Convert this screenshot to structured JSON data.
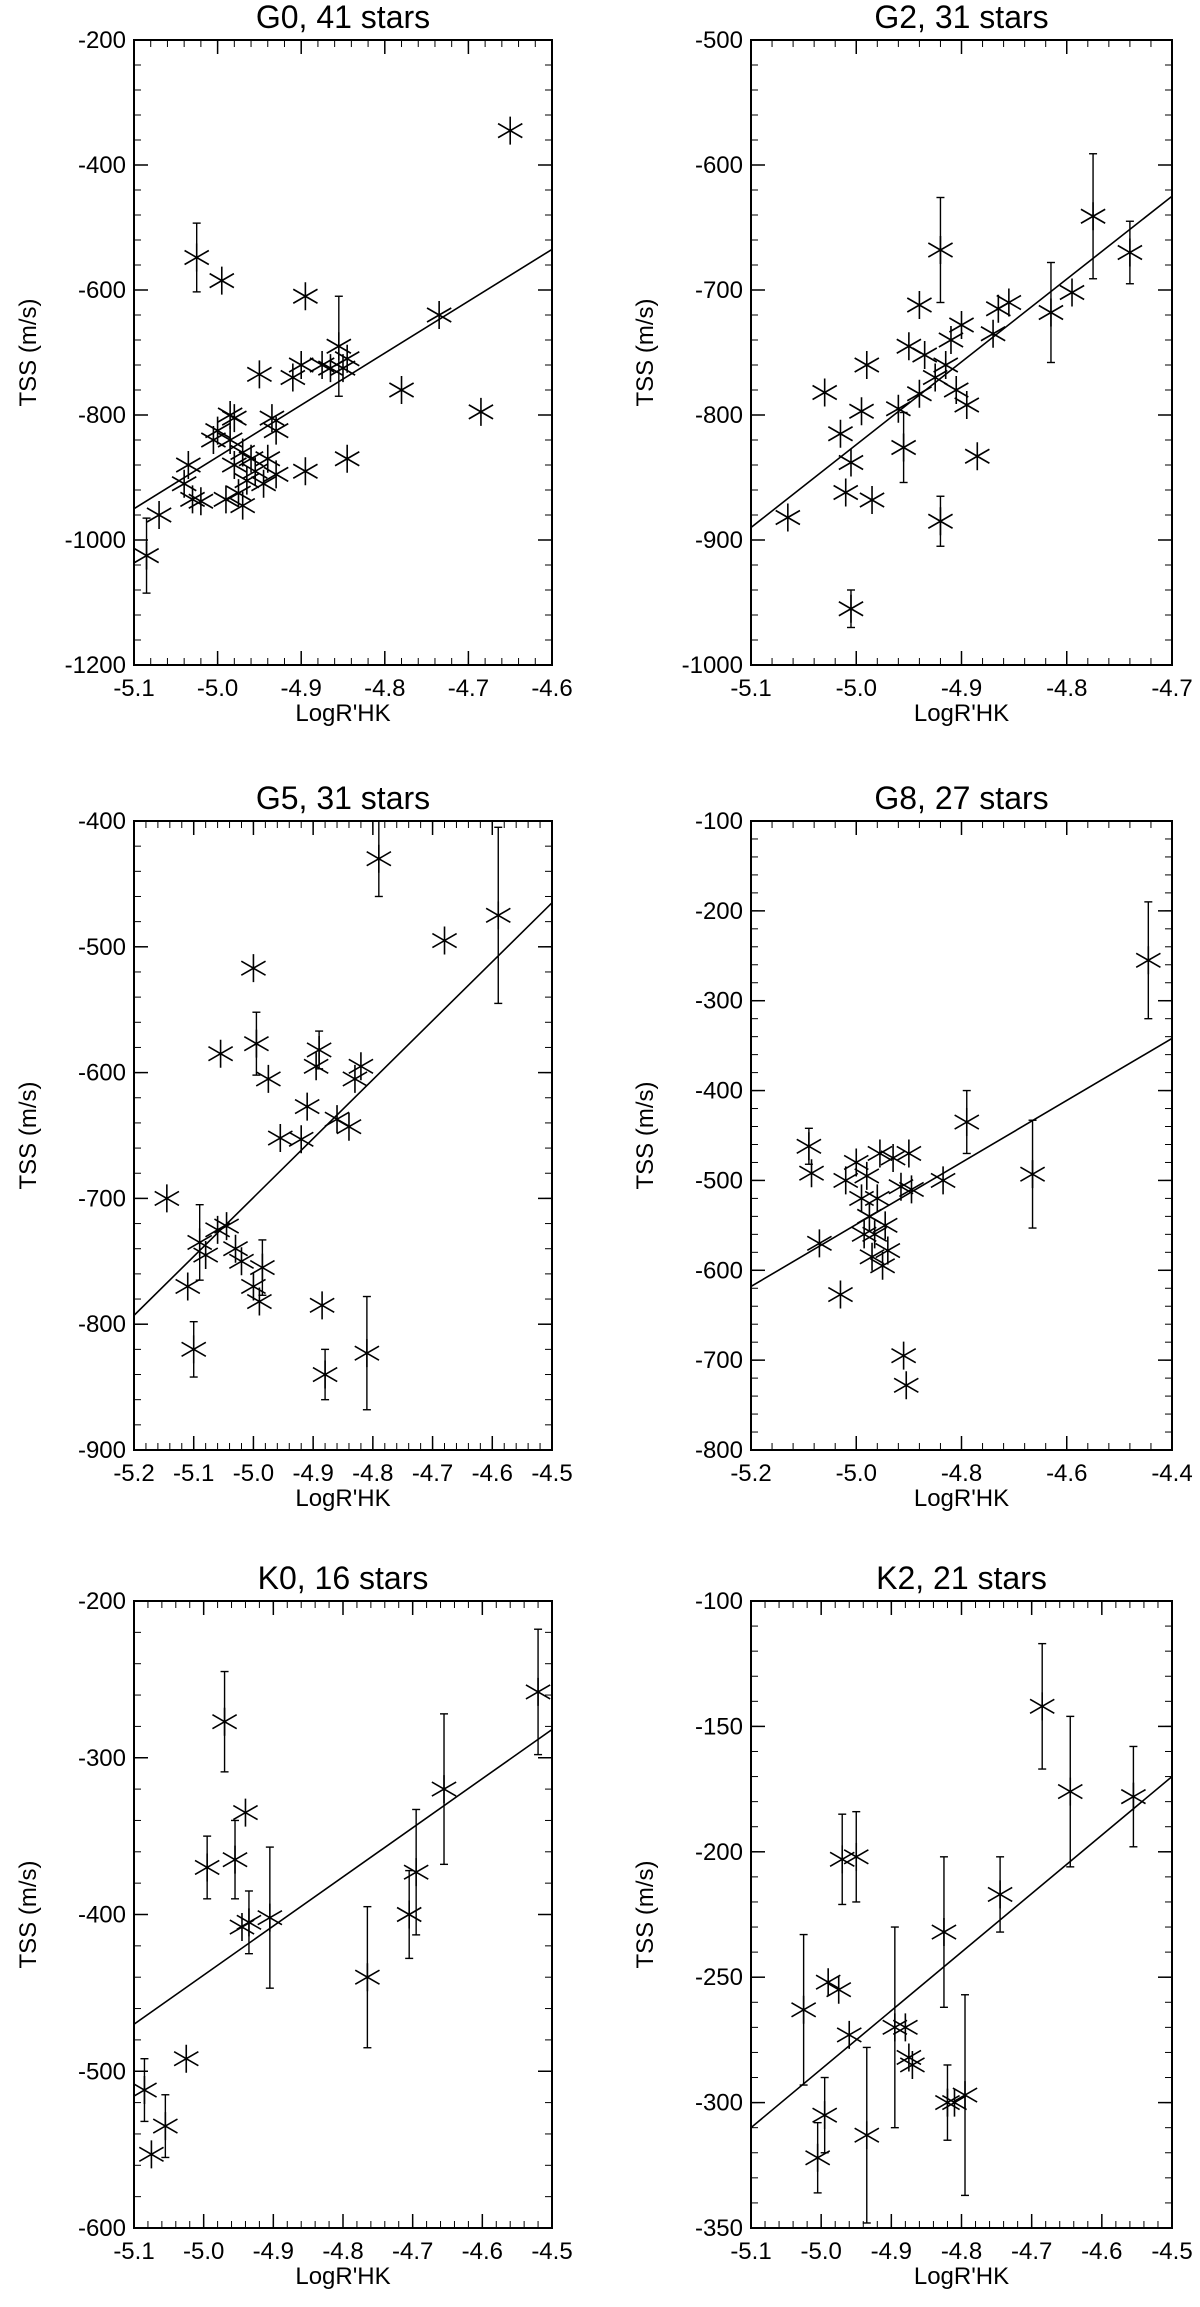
{
  "chart_data": [
    {
      "type": "scatter",
      "title": "G0, 41 stars",
      "xlabel": "LogR'HK",
      "ylabel": "TSS (m/s)",
      "xlim": [
        -5.1,
        -4.6
      ],
      "ylim": [
        -1200,
        -200
      ],
      "xticks": [
        -5.1,
        -5.0,
        -4.9,
        -4.8,
        -4.7,
        -4.6
      ],
      "xtick_labels": [
        "-5.1",
        "-5.0",
        "-4.9",
        "-4.8",
        "-4.7",
        "-4.6"
      ],
      "yticks": [
        -1200,
        -1000,
        -800,
        -600,
        -400,
        -200
      ],
      "ytick_labels": [
        "-1200",
        "-1000",
        "-800",
        "-600",
        "-400",
        "-200"
      ],
      "fit_line": {
        "x": [
          -5.1,
          -4.6
        ],
        "y": [
          -950,
          -535
        ]
      },
      "points": [
        {
          "x": -5.085,
          "y": -1025,
          "err": 60
        },
        {
          "x": -5.07,
          "y": -960,
          "err": 0
        },
        {
          "x": -5.04,
          "y": -910,
          "err": 0
        },
        {
          "x": -5.035,
          "y": -880,
          "err": 0
        },
        {
          "x": -5.03,
          "y": -935,
          "err": 0
        },
        {
          "x": -5.025,
          "y": -548,
          "err": 55
        },
        {
          "x": -5.02,
          "y": -938,
          "err": 0
        },
        {
          "x": -5.005,
          "y": -840,
          "err": 0
        },
        {
          "x": -5.0,
          "y": -825,
          "err": 0
        },
        {
          "x": -4.995,
          "y": -585,
          "err": 0
        },
        {
          "x": -4.99,
          "y": -935,
          "err": 0
        },
        {
          "x": -4.985,
          "y": -800,
          "err": 0
        },
        {
          "x": -4.985,
          "y": -840,
          "err": 0
        },
        {
          "x": -4.98,
          "y": -805,
          "err": 0
        },
        {
          "x": -4.98,
          "y": -880,
          "err": 0
        },
        {
          "x": -4.975,
          "y": -925,
          "err": 0
        },
        {
          "x": -4.97,
          "y": -945,
          "err": 0
        },
        {
          "x": -4.97,
          "y": -860,
          "err": 0
        },
        {
          "x": -4.965,
          "y": -905,
          "err": 0
        },
        {
          "x": -4.96,
          "y": -870,
          "err": 0
        },
        {
          "x": -4.955,
          "y": -890,
          "err": 0
        },
        {
          "x": -4.95,
          "y": -735,
          "err": 0
        },
        {
          "x": -4.945,
          "y": -910,
          "err": 0
        },
        {
          "x": -4.94,
          "y": -870,
          "err": 0
        },
        {
          "x": -4.935,
          "y": -805,
          "err": 0
        },
        {
          "x": -4.93,
          "y": -825,
          "err": 0
        },
        {
          "x": -4.93,
          "y": -895,
          "err": 0
        },
        {
          "x": -4.91,
          "y": -740,
          "err": 0
        },
        {
          "x": -4.9,
          "y": -720,
          "err": 0
        },
        {
          "x": -4.895,
          "y": -610,
          "err": 0
        },
        {
          "x": -4.895,
          "y": -890,
          "err": 0
        },
        {
          "x": -4.875,
          "y": -720,
          "err": 0
        },
        {
          "x": -4.865,
          "y": -725,
          "err": 0
        },
        {
          "x": -4.855,
          "y": -690,
          "err": 80
        },
        {
          "x": -4.85,
          "y": -725,
          "err": 0
        },
        {
          "x": -4.845,
          "y": -870,
          "err": 0
        },
        {
          "x": -4.845,
          "y": -710,
          "err": 0
        },
        {
          "x": -4.78,
          "y": -760,
          "err": 0
        },
        {
          "x": -4.735,
          "y": -640,
          "err": 0
        },
        {
          "x": -4.685,
          "y": -795,
          "err": 0
        },
        {
          "x": -4.65,
          "y": -345,
          "err": 0
        }
      ]
    },
    {
      "type": "scatter",
      "title": "G2, 31 stars",
      "xlabel": "LogR'HK",
      "ylabel": "TSS (m/s)",
      "xlim": [
        -5.1,
        -4.7
      ],
      "ylim": [
        -1000,
        -500
      ],
      "xticks": [
        -5.1,
        -5.0,
        -4.9,
        -4.8,
        -4.7
      ],
      "xtick_labels": [
        "-5.1",
        "-5.0",
        "-4.9",
        "-4.8",
        "-4.7"
      ],
      "yticks": [
        -1000,
        -900,
        -800,
        -700,
        -600,
        -500
      ],
      "ytick_labels": [
        "-1000",
        "-900",
        "-800",
        "-700",
        "-600",
        "-500"
      ],
      "fit_line": {
        "x": [
          -5.1,
          -4.7
        ],
        "y": [
          -890,
          -625
        ]
      },
      "points": [
        {
          "x": -5.065,
          "y": -882,
          "err": 0
        },
        {
          "x": -5.03,
          "y": -782,
          "err": 0
        },
        {
          "x": -5.015,
          "y": -815,
          "err": 0
        },
        {
          "x": -5.01,
          "y": -862,
          "err": 0
        },
        {
          "x": -5.005,
          "y": -955,
          "err": 15
        },
        {
          "x": -5.005,
          "y": -838,
          "err": 0
        },
        {
          "x": -4.995,
          "y": -797,
          "err": 0
        },
        {
          "x": -4.99,
          "y": -760,
          "err": 0
        },
        {
          "x": -4.985,
          "y": -868,
          "err": 0
        },
        {
          "x": -4.96,
          "y": -795,
          "err": 0
        },
        {
          "x": -4.955,
          "y": -826,
          "err": 28
        },
        {
          "x": -4.95,
          "y": -745,
          "err": 0
        },
        {
          "x": -4.94,
          "y": -712,
          "err": 0
        },
        {
          "x": -4.94,
          "y": -783,
          "err": 0
        },
        {
          "x": -4.935,
          "y": -752,
          "err": 0
        },
        {
          "x": -4.925,
          "y": -770,
          "err": 0
        },
        {
          "x": -4.92,
          "y": -668,
          "err": 42
        },
        {
          "x": -4.92,
          "y": -885,
          "err": 20
        },
        {
          "x": -4.915,
          "y": -760,
          "err": 0
        },
        {
          "x": -4.91,
          "y": -740,
          "err": 0
        },
        {
          "x": -4.905,
          "y": -780,
          "err": 0
        },
        {
          "x": -4.9,
          "y": -728,
          "err": 0
        },
        {
          "x": -4.895,
          "y": -792,
          "err": 0
        },
        {
          "x": -4.885,
          "y": -833,
          "err": 0
        },
        {
          "x": -4.87,
          "y": -735,
          "err": 0
        },
        {
          "x": -4.865,
          "y": -715,
          "err": 0
        },
        {
          "x": -4.855,
          "y": -710,
          "err": 0
        },
        {
          "x": -4.815,
          "y": -718,
          "err": 40
        },
        {
          "x": -4.795,
          "y": -702,
          "err": 0
        },
        {
          "x": -4.775,
          "y": -641,
          "err": 50
        },
        {
          "x": -4.74,
          "y": -670,
          "err": 25
        }
      ]
    },
    {
      "type": "scatter",
      "title": "G5, 31 stars",
      "xlabel": "LogR'HK",
      "ylabel": "TSS (m/s)",
      "xlim": [
        -5.2,
        -4.5
      ],
      "ylim": [
        -900,
        -400
      ],
      "xticks": [
        -5.2,
        -5.1,
        -5.0,
        -4.9,
        -4.8,
        -4.7,
        -4.6,
        -4.5
      ],
      "xtick_labels": [
        "-5.2",
        "-5.1",
        "-5.0",
        "-4.9",
        "-4.8",
        "-4.7",
        "-4.6",
        "-4.5"
      ],
      "yticks": [
        -900,
        -800,
        -700,
        -600,
        -500,
        -400
      ],
      "ytick_labels": [
        "-900",
        "-800",
        "-700",
        "-600",
        "-500",
        "-400"
      ],
      "fit_line": {
        "x": [
          -5.2,
          -4.5
        ],
        "y": [
          -793,
          -465
        ]
      },
      "points": [
        {
          "x": -5.145,
          "y": -700,
          "err": 0
        },
        {
          "x": -5.11,
          "y": -770,
          "err": 0
        },
        {
          "x": -5.1,
          "y": -820,
          "err": 22
        },
        {
          "x": -5.09,
          "y": -735,
          "err": 30
        },
        {
          "x": -5.08,
          "y": -745,
          "err": 0
        },
        {
          "x": -5.06,
          "y": -725,
          "err": 0
        },
        {
          "x": -5.055,
          "y": -585,
          "err": 0
        },
        {
          "x": -5.045,
          "y": -722,
          "err": 0
        },
        {
          "x": -5.03,
          "y": -740,
          "err": 0
        },
        {
          "x": -5.02,
          "y": -750,
          "err": 0
        },
        {
          "x": -5.0,
          "y": -517,
          "err": 0
        },
        {
          "x": -5.0,
          "y": -770,
          "err": 0
        },
        {
          "x": -4.995,
          "y": -577,
          "err": 25
        },
        {
          "x": -4.99,
          "y": -782,
          "err": 0
        },
        {
          "x": -4.985,
          "y": -755,
          "err": 22
        },
        {
          "x": -4.975,
          "y": -605,
          "err": 0
        },
        {
          "x": -4.955,
          "y": -652,
          "err": 0
        },
        {
          "x": -4.92,
          "y": -653,
          "err": 0
        },
        {
          "x": -4.91,
          "y": -627,
          "err": 0
        },
        {
          "x": -4.895,
          "y": -595,
          "err": 0
        },
        {
          "x": -4.89,
          "y": -582,
          "err": 15
        },
        {
          "x": -4.885,
          "y": -785,
          "err": 0
        },
        {
          "x": -4.88,
          "y": -840,
          "err": 20
        },
        {
          "x": -4.86,
          "y": -637,
          "err": 0
        },
        {
          "x": -4.84,
          "y": -643,
          "err": 0
        },
        {
          "x": -4.83,
          "y": -605,
          "err": 0
        },
        {
          "x": -4.82,
          "y": -595,
          "err": 0
        },
        {
          "x": -4.81,
          "y": -823,
          "err": 45
        },
        {
          "x": -4.79,
          "y": -430,
          "err": 30
        },
        {
          "x": -4.68,
          "y": -495,
          "err": 0
        },
        {
          "x": -4.59,
          "y": -475,
          "err": 70
        }
      ]
    },
    {
      "type": "scatter",
      "title": "G8, 27 stars",
      "xlabel": "LogR'HK",
      "ylabel": "TSS (m/s)",
      "xlim": [
        -5.2,
        -4.4
      ],
      "ylim": [
        -800,
        -100
      ],
      "xticks": [
        -5.2,
        -5.0,
        -4.8,
        -4.6,
        -4.4
      ],
      "xtick_labels": [
        "-5.2",
        "-5.0",
        "-4.8",
        "-4.6",
        "-4.4"
      ],
      "yticks": [
        -800,
        -700,
        -600,
        -500,
        -400,
        -300,
        -200,
        -100
      ],
      "ytick_labels": [
        "-800",
        "-700",
        "-600",
        "-500",
        "-400",
        "-300",
        "-200",
        "-100"
      ],
      "fit_line": {
        "x": [
          -5.2,
          -4.4
        ],
        "y": [
          -618,
          -342
        ]
      },
      "points": [
        {
          "x": -5.09,
          "y": -462,
          "err": 20
        },
        {
          "x": -5.085,
          "y": -492,
          "err": 0
        },
        {
          "x": -5.07,
          "y": -570,
          "err": 0
        },
        {
          "x": -5.03,
          "y": -627,
          "err": 0
        },
        {
          "x": -5.02,
          "y": -500,
          "err": 0
        },
        {
          "x": -5.0,
          "y": -480,
          "err": 0
        },
        {
          "x": -4.99,
          "y": -520,
          "err": 0
        },
        {
          "x": -4.985,
          "y": -560,
          "err": 0
        },
        {
          "x": -4.98,
          "y": -495,
          "err": 0
        },
        {
          "x": -4.975,
          "y": -540,
          "err": 0
        },
        {
          "x": -4.97,
          "y": -585,
          "err": 0
        },
        {
          "x": -4.965,
          "y": -560,
          "err": 0
        },
        {
          "x": -4.96,
          "y": -520,
          "err": 0
        },
        {
          "x": -4.955,
          "y": -470,
          "err": 0
        },
        {
          "x": -4.95,
          "y": -595,
          "err": 0
        },
        {
          "x": -4.945,
          "y": -550,
          "err": 0
        },
        {
          "x": -4.94,
          "y": -578,
          "err": 0
        },
        {
          "x": -4.93,
          "y": -475,
          "err": 0
        },
        {
          "x": -4.915,
          "y": -507,
          "err": 0
        },
        {
          "x": -4.91,
          "y": -695,
          "err": 0
        },
        {
          "x": -4.905,
          "y": -728,
          "err": 0
        },
        {
          "x": -4.9,
          "y": -470,
          "err": 0
        },
        {
          "x": -4.895,
          "y": -510,
          "err": 0
        },
        {
          "x": -4.835,
          "y": -500,
          "err": 0
        },
        {
          "x": -4.79,
          "y": -435,
          "err": 35
        },
        {
          "x": -4.665,
          "y": -493,
          "err": 60
        },
        {
          "x": -4.445,
          "y": -255,
          "err": 65
        }
      ]
    },
    {
      "type": "scatter",
      "title": "K0, 16 stars",
      "xlabel": "LogR'HK",
      "ylabel": "TSS (m/s)",
      "xlim": [
        -5.1,
        -4.5
      ],
      "ylim": [
        -600,
        -200
      ],
      "xticks": [
        -5.1,
        -5.0,
        -4.9,
        -4.8,
        -4.7,
        -4.6,
        -4.5
      ],
      "xtick_labels": [
        "-5.1",
        "-5.0",
        "-4.9",
        "-4.8",
        "-4.7",
        "-4.6",
        "-4.5"
      ],
      "yticks": [
        -600,
        -500,
        -400,
        -300,
        -200
      ],
      "ytick_labels": [
        "-600",
        "-500",
        "-400",
        "-300",
        "-200"
      ],
      "fit_line": {
        "x": [
          -5.1,
          -4.5
        ],
        "y": [
          -470,
          -282
        ]
      },
      "points": [
        {
          "x": -5.085,
          "y": -512,
          "err": 20
        },
        {
          "x": -5.075,
          "y": -553,
          "err": 0
        },
        {
          "x": -5.055,
          "y": -535,
          "err": 20
        },
        {
          "x": -5.025,
          "y": -492,
          "err": 0
        },
        {
          "x": -4.995,
          "y": -370,
          "err": 20
        },
        {
          "x": -4.97,
          "y": -277,
          "err": 32
        },
        {
          "x": -4.955,
          "y": -365,
          "err": 25
        },
        {
          "x": -4.945,
          "y": -408,
          "err": 0
        },
        {
          "x": -4.94,
          "y": -335,
          "err": 0
        },
        {
          "x": -4.935,
          "y": -405,
          "err": 20
        },
        {
          "x": -4.905,
          "y": -402,
          "err": 45
        },
        {
          "x": -4.765,
          "y": -440,
          "err": 45
        },
        {
          "x": -4.705,
          "y": -400,
          "err": 28
        },
        {
          "x": -4.695,
          "y": -373,
          "err": 40
        },
        {
          "x": -4.655,
          "y": -320,
          "err": 48
        },
        {
          "x": -4.52,
          "y": -258,
          "err": 40
        }
      ]
    },
    {
      "type": "scatter",
      "title": "K2, 21 stars",
      "xlabel": "LogR'HK",
      "ylabel": "TSS (m/s)",
      "xlim": [
        -5.1,
        -4.5
      ],
      "ylim": [
        -350,
        -100
      ],
      "xticks": [
        -5.1,
        -5.0,
        -4.9,
        -4.8,
        -4.7,
        -4.6,
        -4.5
      ],
      "xtick_labels": [
        "-5.1",
        "-5.0",
        "-4.9",
        "-4.8",
        "-4.7",
        "-4.6",
        "-4.5"
      ],
      "yticks": [
        -350,
        -300,
        -250,
        -200,
        -150,
        -100
      ],
      "ytick_labels": [
        "-350",
        "-300",
        "-250",
        "-200",
        "-150",
        "-100"
      ],
      "fit_line": {
        "x": [
          -5.1,
          -4.5
        ],
        "y": [
          -310,
          -170
        ]
      },
      "points": [
        {
          "x": -5.025,
          "y": -263,
          "err": 30
        },
        {
          "x": -5.005,
          "y": -322,
          "err": 14
        },
        {
          "x": -4.995,
          "y": -305,
          "err": 15
        },
        {
          "x": -4.99,
          "y": -252,
          "err": 0
        },
        {
          "x": -4.975,
          "y": -255,
          "err": 0
        },
        {
          "x": -4.97,
          "y": -203,
          "err": 18
        },
        {
          "x": -4.96,
          "y": -273,
          "err": 0
        },
        {
          "x": -4.95,
          "y": -202,
          "err": 18
        },
        {
          "x": -4.935,
          "y": -313,
          "err": 35
        },
        {
          "x": -4.895,
          "y": -270,
          "err": 40
        },
        {
          "x": -4.88,
          "y": -270,
          "err": 0
        },
        {
          "x": -4.875,
          "y": -282,
          "err": 0
        },
        {
          "x": -4.87,
          "y": -285,
          "err": 0
        },
        {
          "x": -4.825,
          "y": -232,
          "err": 30
        },
        {
          "x": -4.82,
          "y": -300,
          "err": 15
        },
        {
          "x": -4.81,
          "y": -300,
          "err": 0
        },
        {
          "x": -4.795,
          "y": -297,
          "err": 40
        },
        {
          "x": -4.745,
          "y": -217,
          "err": 15
        },
        {
          "x": -4.685,
          "y": -142,
          "err": 25
        },
        {
          "x": -4.645,
          "y": -176,
          "err": 30
        },
        {
          "x": -4.555,
          "y": -178,
          "err": 20
        }
      ]
    }
  ]
}
